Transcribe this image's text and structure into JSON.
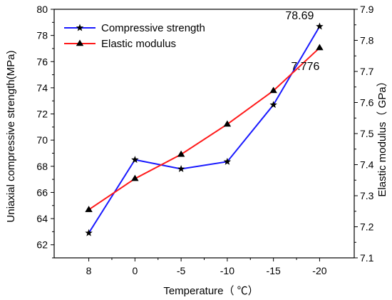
{
  "chart_data": {
    "type": "line",
    "categories": [
      "8",
      "0",
      "-5",
      "-10",
      "-15",
      "-20"
    ],
    "xlabel": "Temperature（ ℃）",
    "ylabel_left": "Uniaxial compressive strength(MPa)",
    "ylabel_right": "Elastic modulus（ GPa）",
    "ylim_left": [
      61,
      80
    ],
    "ylim_right": [
      7.1,
      7.9
    ],
    "yticks_left": [
      "62",
      "64",
      "66",
      "68",
      "70",
      "72",
      "74",
      "76",
      "78",
      "80"
    ],
    "yticks_right": [
      "7.1",
      "7.2",
      "7.3",
      "7.4",
      "7.5",
      "7.6",
      "7.7",
      "7.8",
      "7.9"
    ],
    "grid": false,
    "legend_position": "top-left",
    "series": [
      {
        "name": "Compressive strength",
        "axis": "left",
        "marker": "star",
        "color": "#1a1aff",
        "values": [
          62.9,
          68.5,
          67.8,
          68.35,
          72.7,
          78.69
        ],
        "end_label": "78.69"
      },
      {
        "name": "Elastic modulus",
        "axis": "right",
        "marker": "triangle",
        "color": "#ff1a1a",
        "values": [
          7.255,
          7.355,
          7.433,
          7.53,
          7.638,
          7.776
        ],
        "end_label": "7.776"
      }
    ]
  }
}
